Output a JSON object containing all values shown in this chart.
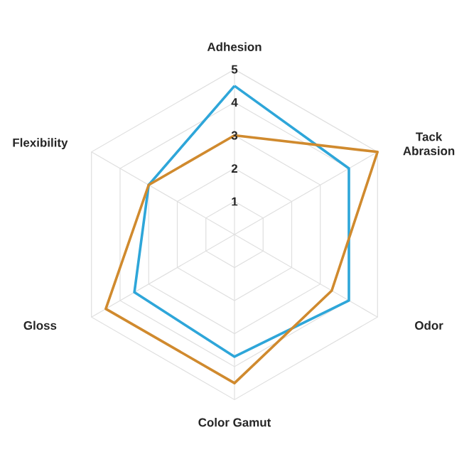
{
  "chart_data": {
    "type": "radar",
    "categories": [
      "Adhesion",
      "Tack Abrasion",
      "Odor",
      "Color Gamut",
      "Gloss",
      "Flexibility"
    ],
    "series": [
      {
        "color": "#2ea6d9",
        "values": [
          4.5,
          4.0,
          4.0,
          3.7,
          3.5,
          3.0
        ]
      },
      {
        "color": "#d08a2e",
        "values": [
          3.0,
          5.0,
          3.4,
          4.5,
          4.5,
          3.0
        ]
      }
    ],
    "ylim": [
      0,
      5
    ],
    "yticks": [
      1,
      2,
      3,
      4,
      5
    ],
    "grid": true
  }
}
